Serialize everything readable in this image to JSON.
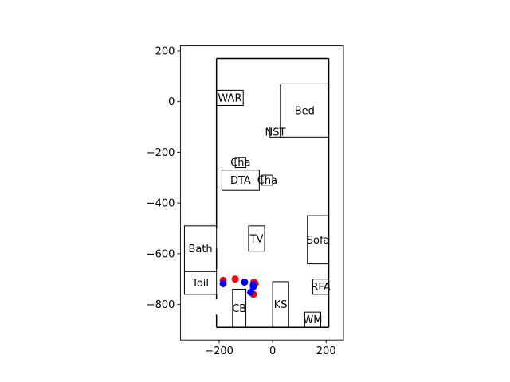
{
  "chart_data": {
    "type": "scatter",
    "title": "",
    "xlabel": "",
    "ylabel": "",
    "xlim": [
      -345,
      265
    ],
    "ylim": [
      -940,
      220
    ],
    "grid": false,
    "x_ticks": [
      {
        "value": -200,
        "label": "−200"
      },
      {
        "value": 0,
        "label": "0"
      },
      {
        "value": 200,
        "label": "200"
      }
    ],
    "y_ticks": [
      {
        "value": 200,
        "label": "200"
      },
      {
        "value": 0,
        "label": "0"
      },
      {
        "value": -200,
        "label": "−200"
      },
      {
        "value": -400,
        "label": "−400"
      },
      {
        "value": -600,
        "label": "−600"
      },
      {
        "value": -800,
        "label": "−800"
      }
    ],
    "outline": {
      "color": "#000000",
      "segments": [
        [
          [
            -210,
            170
          ],
          [
            210,
            170
          ]
        ],
        [
          [
            210,
            170
          ],
          [
            210,
            -890
          ]
        ],
        [
          [
            210,
            -890
          ],
          [
            -210,
            -890
          ]
        ],
        [
          [
            -210,
            -890
          ],
          [
            -210,
            -840
          ]
        ],
        [
          [
            -210,
            -780
          ],
          [
            -210,
            -760
          ]
        ],
        [
          [
            -210,
            -660
          ],
          [
            -210,
            -580
          ]
        ],
        [
          [
            -210,
            -500
          ],
          [
            -210,
            170
          ]
        ]
      ]
    },
    "rooms": [
      {
        "name": "wardrobe",
        "label": "WAR",
        "x0": -210,
        "x1": -110,
        "y0": -15,
        "y1": 45
      },
      {
        "name": "bed",
        "label": "Bed",
        "x0": 30,
        "x1": 210,
        "y0": -140,
        "y1": 70
      },
      {
        "name": "nightstand",
        "label": "NST",
        "x0": -10,
        "x1": 30,
        "y0": -140,
        "y1": -100
      },
      {
        "name": "chair-1",
        "label": "Cha",
        "x0": -140,
        "x1": -100,
        "y0": -260,
        "y1": -220
      },
      {
        "name": "dining-table",
        "label": "DTA",
        "x0": -190,
        "x1": -50,
        "y0": -350,
        "y1": -270
      },
      {
        "name": "chair-2",
        "label": "Cha",
        "x0": -40,
        "x1": 0,
        "y0": -330,
        "y1": -290
      },
      {
        "name": "tv",
        "label": "TV",
        "x0": -90,
        "x1": -30,
        "y0": -590,
        "y1": -490
      },
      {
        "name": "sofa",
        "label": "Sofa",
        "x0": 130,
        "x1": 210,
        "y0": -640,
        "y1": -450
      },
      {
        "name": "bath",
        "label": "Bath",
        "x0": -330,
        "x1": -210,
        "y0": -670,
        "y1": -490
      },
      {
        "name": "toilet",
        "label": "Toil",
        "x0": -330,
        "x1": -210,
        "y0": -760,
        "y1": -670
      },
      {
        "name": "refrigerator",
        "label": "RFA",
        "x0": 150,
        "x1": 210,
        "y0": -760,
        "y1": -700
      },
      {
        "name": "kitchen-sink",
        "label": "KS",
        "x0": 0,
        "x1": 60,
        "y0": -890,
        "y1": -710
      },
      {
        "name": "cupboard",
        "label": "CB",
        "x0": -150,
        "x1": -100,
        "y0": -890,
        "y1": -740
      },
      {
        "name": "washing-machine",
        "label": "WM",
        "x0": 120,
        "x1": 180,
        "y0": -890,
        "y1": -830
      }
    ],
    "series": [
      {
        "color": "#ff0000",
        "points": [
          [
            -185,
            -705
          ],
          [
            -140,
            -700
          ],
          [
            -70,
            -712
          ],
          [
            -65,
            -718
          ],
          [
            -72,
            -760
          ]
        ]
      },
      {
        "color": "#0000ff",
        "points": [
          [
            -185,
            -718
          ],
          [
            -105,
            -712
          ],
          [
            -72,
            -722
          ],
          [
            -82,
            -752
          ],
          [
            -72,
            -730
          ]
        ]
      }
    ]
  }
}
